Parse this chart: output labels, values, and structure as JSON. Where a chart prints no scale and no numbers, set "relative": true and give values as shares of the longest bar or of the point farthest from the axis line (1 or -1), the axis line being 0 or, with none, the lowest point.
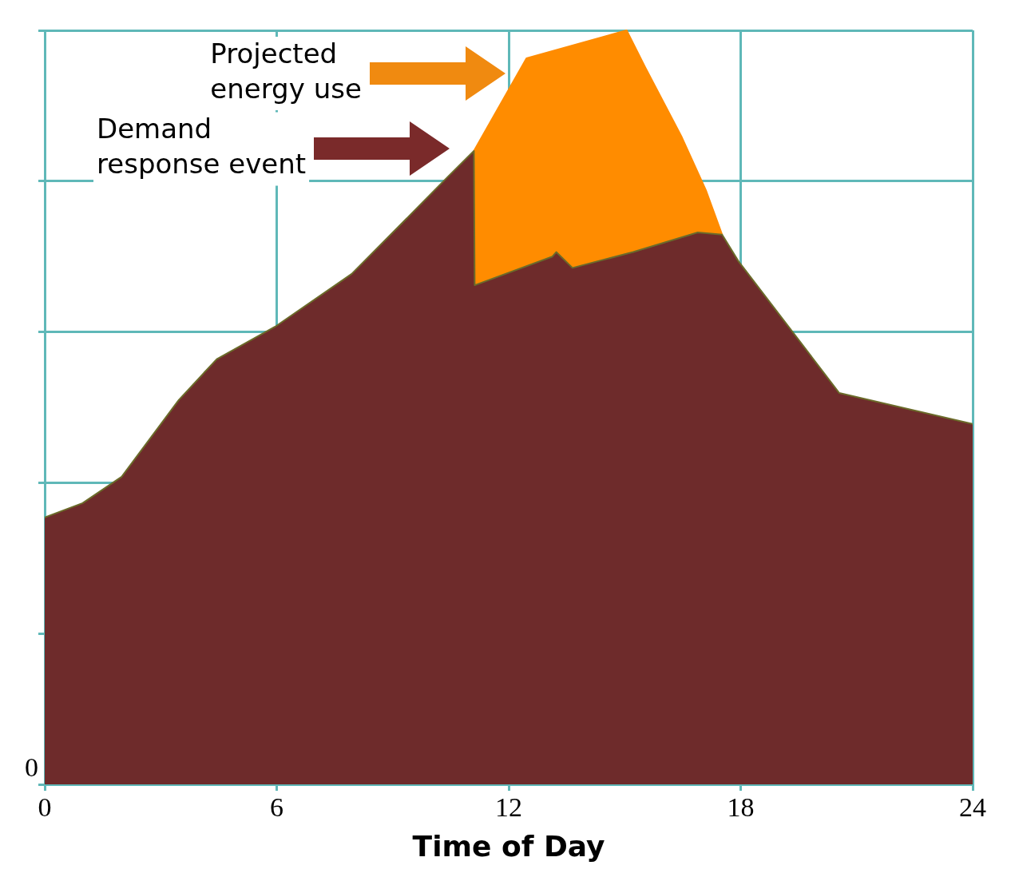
{
  "chart_data": {
    "type": "area",
    "xlabel": "Time of Day",
    "relative": true,
    "xlim": [
      0,
      24
    ],
    "xticks": [
      0,
      6,
      12,
      18,
      24
    ],
    "grid": true,
    "series": [
      {
        "color": "#6e2b2b",
        "x": [
          0,
          0.98,
          1.99,
          3.47,
          4.45,
          5.96,
          7.94,
          9.41,
          10.41,
          11.1,
          11.12,
          13.13,
          13.23,
          13.65,
          15.22,
          16.89,
          17.52,
          17.94,
          20.55,
          24
        ],
        "values": [
          0.354,
          0.373,
          0.408,
          0.51,
          0.564,
          0.607,
          0.677,
          0.753,
          0.805,
          0.84,
          0.662,
          0.7,
          0.706,
          0.685,
          0.706,
          0.732,
          0.729,
          0.694,
          0.519,
          0.478
        ]
      },
      {
        "type": "area",
        "color": "#ff8c00",
        "x": [
          11.1,
          12.46,
          15.05,
          15.53,
          16.48,
          17.1,
          17.52
        ],
        "values": [
          0.84,
          0.963,
          1.0,
          0.951,
          0.858,
          0.788,
          0.729
        ]
      }
    ],
    "annotations": [
      "Projected energy use",
      "Demand response event",
      {
        "text": "0",
        "x": 0,
        "y": 0
      }
    ]
  }
}
